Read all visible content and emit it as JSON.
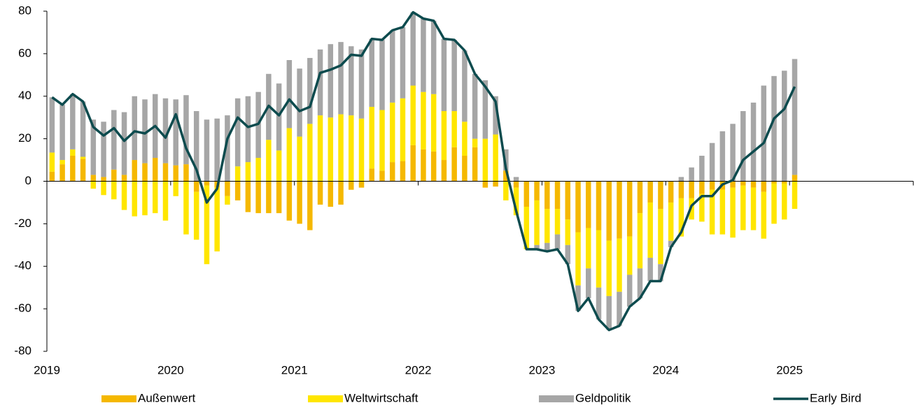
{
  "chart_data": {
    "type": "bar",
    "stacked": true,
    "categories": [
      "2019",
      null,
      null,
      null,
      null,
      null,
      null,
      null,
      null,
      null,
      null,
      null,
      "2020",
      null,
      null,
      null,
      null,
      null,
      null,
      null,
      null,
      null,
      null,
      null,
      "2021",
      null,
      null,
      null,
      null,
      null,
      null,
      null,
      null,
      null,
      null,
      null,
      "2022",
      null,
      null,
      null,
      null,
      null,
      null,
      null,
      null,
      null,
      null,
      null,
      "2023",
      null,
      null,
      null,
      null,
      null,
      null,
      null,
      null,
      null,
      null,
      null,
      "2024",
      null,
      null,
      null,
      null,
      null,
      null,
      null,
      null,
      null,
      null,
      null,
      "2025"
    ],
    "series": [
      {
        "name": "Außenwert",
        "color": "#f5b800",
        "type": "bar",
        "values": [
          4.5,
          8,
          12,
          10.5,
          3,
          2,
          5.5,
          3,
          10,
          8.5,
          11,
          8.5,
          7.5,
          8,
          -5,
          -2,
          -3,
          -7,
          -9,
          -14.5,
          -15,
          -15,
          -15,
          -18.5,
          -20,
          -23,
          -11,
          -12,
          -11,
          -4,
          -3,
          6,
          5,
          9,
          9.5,
          17,
          15,
          14,
          10,
          16,
          12,
          16,
          -3,
          -2.5,
          5,
          -3,
          -12,
          -9,
          -13,
          -13,
          -18,
          -24,
          -22,
          -23,
          -28,
          -27,
          -26,
          -15,
          -10,
          -13,
          -10,
          -8,
          -8,
          -6,
          -4,
          -4,
          -3,
          -2,
          -3,
          -5,
          -1,
          -1,
          3
        ]
      },
      {
        "name": "Weltwirtschaft",
        "color": "#ffe600",
        "type": "bar",
        "values": [
          9,
          2,
          3,
          1,
          -3.5,
          -6.5,
          -8.5,
          -13.5,
          -16.5,
          -16,
          -15,
          -18.5,
          -7,
          -25,
          -22.5,
          -37,
          -30,
          -4,
          7,
          9,
          11,
          19.5,
          14.5,
          25,
          21,
          27,
          31,
          30,
          31.5,
          31,
          29.5,
          29,
          28.5,
          28,
          29.5,
          28,
          27,
          27,
          23,
          17,
          16,
          4,
          20,
          22,
          -9,
          -13,
          -20,
          -21,
          -16,
          -12,
          -12,
          -25,
          -19,
          -27,
          -26,
          -25,
          -18,
          -26,
          -26,
          -26,
          -18,
          -18,
          -10,
          -13,
          -21,
          -21,
          -23.5,
          -21,
          -20,
          -22,
          -19,
          -17,
          -13
        ]
      },
      {
        "name": "Geldpolitik",
        "color": "#a6a6a6",
        "type": "bar",
        "values": [
          26,
          26,
          26,
          26,
          26,
          26,
          28,
          29.5,
          30,
          30,
          30,
          30.5,
          31,
          32.5,
          33,
          29,
          29.5,
          31,
          32,
          31,
          31,
          31,
          31.5,
          32,
          32,
          31,
          31,
          34.5,
          34,
          32.5,
          32.5,
          32,
          33,
          34,
          33.5,
          34.5,
          34.5,
          34.5,
          34,
          33.5,
          33.5,
          30.5,
          27.5,
          18,
          10,
          2,
          0,
          -2,
          -4,
          -7,
          -9,
          -12,
          -14,
          -15,
          -16,
          -16,
          -15,
          -14,
          -11,
          -8,
          -3,
          2,
          6.5,
          12,
          18,
          23.5,
          27,
          33,
          37,
          45,
          49.5,
          52,
          54.5
        ]
      },
      {
        "name": "Early Bird",
        "color": "#0d4b4e",
        "type": "line",
        "values": [
          39.5,
          36,
          41,
          37.5,
          25.5,
          21.5,
          25,
          19,
          23.5,
          22.5,
          26,
          20.5,
          31.5,
          15.5,
          5.5,
          -10,
          -3.5,
          20,
          30,
          25.5,
          27,
          35.5,
          31,
          38.5,
          33,
          35,
          51,
          52.5,
          54.5,
          59.5,
          59,
          67,
          66.5,
          71,
          72.5,
          79.5,
          76.5,
          75.5,
          67,
          66.5,
          61.5,
          50.5,
          44.5,
          37.5,
          6,
          -14,
          -32,
          -32,
          -33,
          -32,
          -39,
          -61,
          -55,
          -65,
          -70,
          -68,
          -59,
          -55,
          -47,
          -47,
          -31,
          -24,
          -11.5,
          -7,
          -7,
          -1.5,
          0.5,
          10,
          14,
          18,
          29.5,
          34,
          44.5
        ]
      }
    ],
    "ylim": [
      -80,
      80
    ],
    "yticks": [
      -80,
      -60,
      -40,
      -20,
      0,
      20,
      40,
      60,
      80
    ],
    "grid": false,
    "legend": "bottom"
  }
}
